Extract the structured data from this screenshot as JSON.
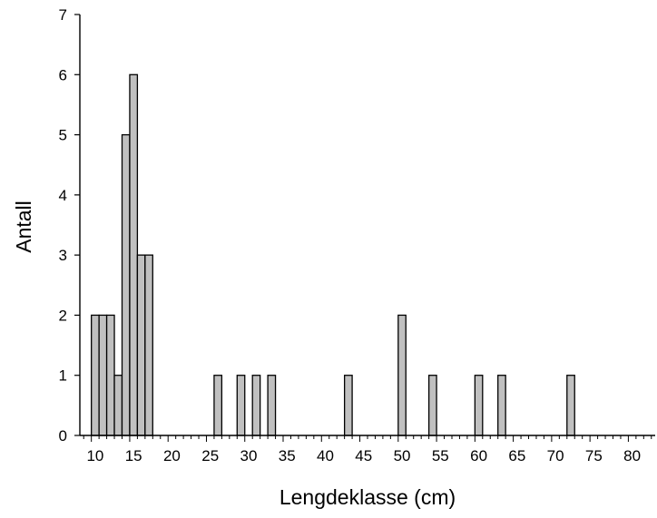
{
  "chart_data": {
    "type": "bar",
    "title": "",
    "xlabel": "Lengdeklasse (cm)",
    "ylabel": "Antall",
    "xlim": [
      8.5,
      83.5
    ],
    "ylim": [
      0,
      7
    ],
    "x_ticks": [
      10,
      15,
      20,
      25,
      30,
      35,
      40,
      45,
      50,
      55,
      60,
      65,
      70,
      75,
      80
    ],
    "y_ticks": [
      0,
      1,
      2,
      3,
      4,
      5,
      6,
      7
    ],
    "x_tick_labels": [
      "10",
      "15",
      "20",
      "25",
      "30",
      "35",
      "40",
      "45",
      "50",
      "55",
      "60",
      "65",
      "70",
      "75",
      "80"
    ],
    "y_tick_labels": [
      "0",
      "1",
      "2",
      "3",
      "4",
      "5",
      "6",
      "7"
    ],
    "bar_width": 1,
    "grid": false,
    "legend": "none",
    "bar_color": "#c0c0c0",
    "edge_color": "#000000",
    "points": [
      {
        "x": 10,
        "y": 2
      },
      {
        "x": 11,
        "y": 2
      },
      {
        "x": 12,
        "y": 2
      },
      {
        "x": 13,
        "y": 1
      },
      {
        "x": 14,
        "y": 5
      },
      {
        "x": 15,
        "y": 6
      },
      {
        "x": 16,
        "y": 3
      },
      {
        "x": 17,
        "y": 3
      },
      {
        "x": 26,
        "y": 1
      },
      {
        "x": 29,
        "y": 1
      },
      {
        "x": 31,
        "y": 1
      },
      {
        "x": 33,
        "y": 1
      },
      {
        "x": 43,
        "y": 1
      },
      {
        "x": 50,
        "y": 2
      },
      {
        "x": 54,
        "y": 1
      },
      {
        "x": 60,
        "y": 1
      },
      {
        "x": 63,
        "y": 1
      },
      {
        "x": 72,
        "y": 1
      }
    ]
  }
}
